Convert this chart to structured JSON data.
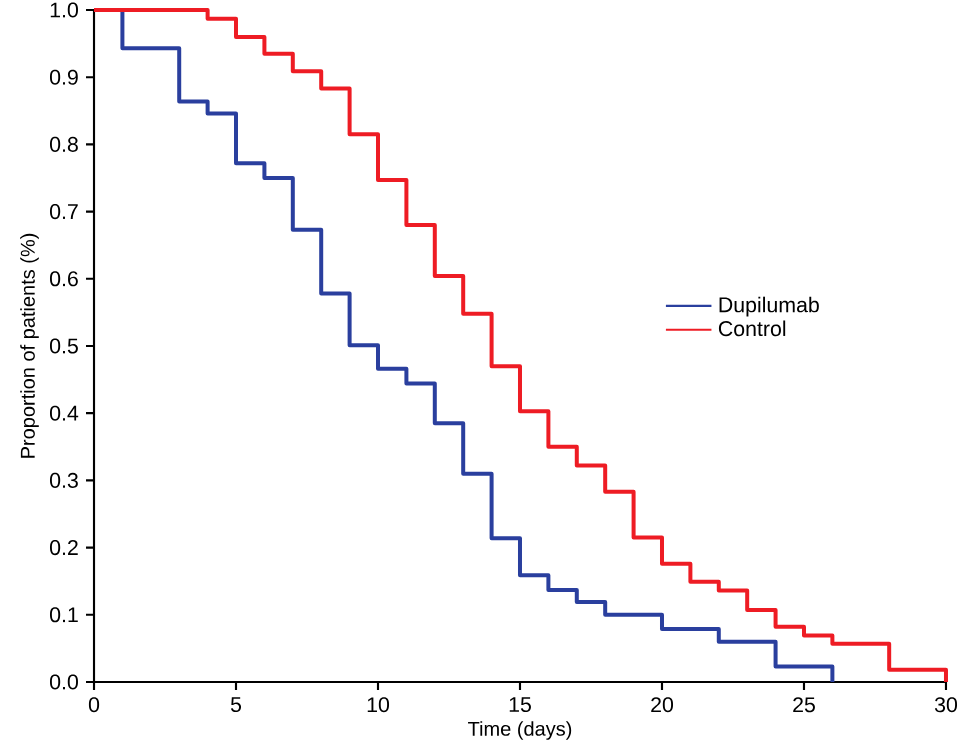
{
  "chart_data": {
    "type": "step",
    "xlabel": "Time (days)",
    "ylabel": "Proportion of patients (%)",
    "xlim": [
      0,
      30
    ],
    "ylim": [
      0,
      1
    ],
    "xticks": [
      0,
      5,
      10,
      15,
      20,
      25,
      30
    ],
    "yticks": [
      {
        "value": 0,
        "label": "0.0"
      },
      {
        "value": 0.1,
        "label": "0.1"
      },
      {
        "value": 0.2,
        "label": "0.2"
      },
      {
        "value": 0.3,
        "label": "0.3"
      },
      {
        "value": 0.4,
        "label": "0.4"
      },
      {
        "value": 0.5,
        "label": "0.5"
      },
      {
        "value": 0.6,
        "label": "0.6"
      },
      {
        "value": 0.7,
        "label": "0.7"
      },
      {
        "value": 0.8,
        "label": "0.8"
      },
      {
        "value": 0.9,
        "label": "0.9"
      },
      {
        "value": 1,
        "label": "1.0"
      }
    ],
    "series": [
      {
        "name": "Dupilumab",
        "color": "#2a3f9e",
        "x": [
          0,
          1,
          3,
          4,
          5,
          6,
          7,
          8,
          9,
          10,
          11,
          12,
          13,
          14,
          15,
          16,
          17,
          18,
          20,
          22,
          24,
          26
        ],
        "values": [
          1.0,
          0.943,
          0.864,
          0.846,
          0.772,
          0.75,
          0.673,
          0.578,
          0.501,
          0.466,
          0.444,
          0.385,
          0.31,
          0.214,
          0.159,
          0.137,
          0.119,
          0.1,
          0.079,
          0.06,
          0.023,
          0
        ]
      },
      {
        "name": "Control",
        "color": "#ee1c24",
        "x": [
          0,
          4,
          5,
          6,
          7,
          8,
          9,
          10,
          11,
          12,
          13,
          14,
          15,
          16,
          17,
          18,
          19,
          20,
          21,
          22,
          23,
          24,
          25,
          26,
          28,
          30
        ],
        "values": [
          1.0,
          0.987,
          0.96,
          0.935,
          0.909,
          0.883,
          0.815,
          0.747,
          0.68,
          0.604,
          0.548,
          0.47,
          0.403,
          0.35,
          0.322,
          0.283,
          0.215,
          0.176,
          0.149,
          0.136,
          0.107,
          0.082,
          0.069,
          0.057,
          0.018,
          0
        ]
      }
    ],
    "legend": "right",
    "grid": false,
    "marker": "none",
    "line_style": "solid"
  }
}
